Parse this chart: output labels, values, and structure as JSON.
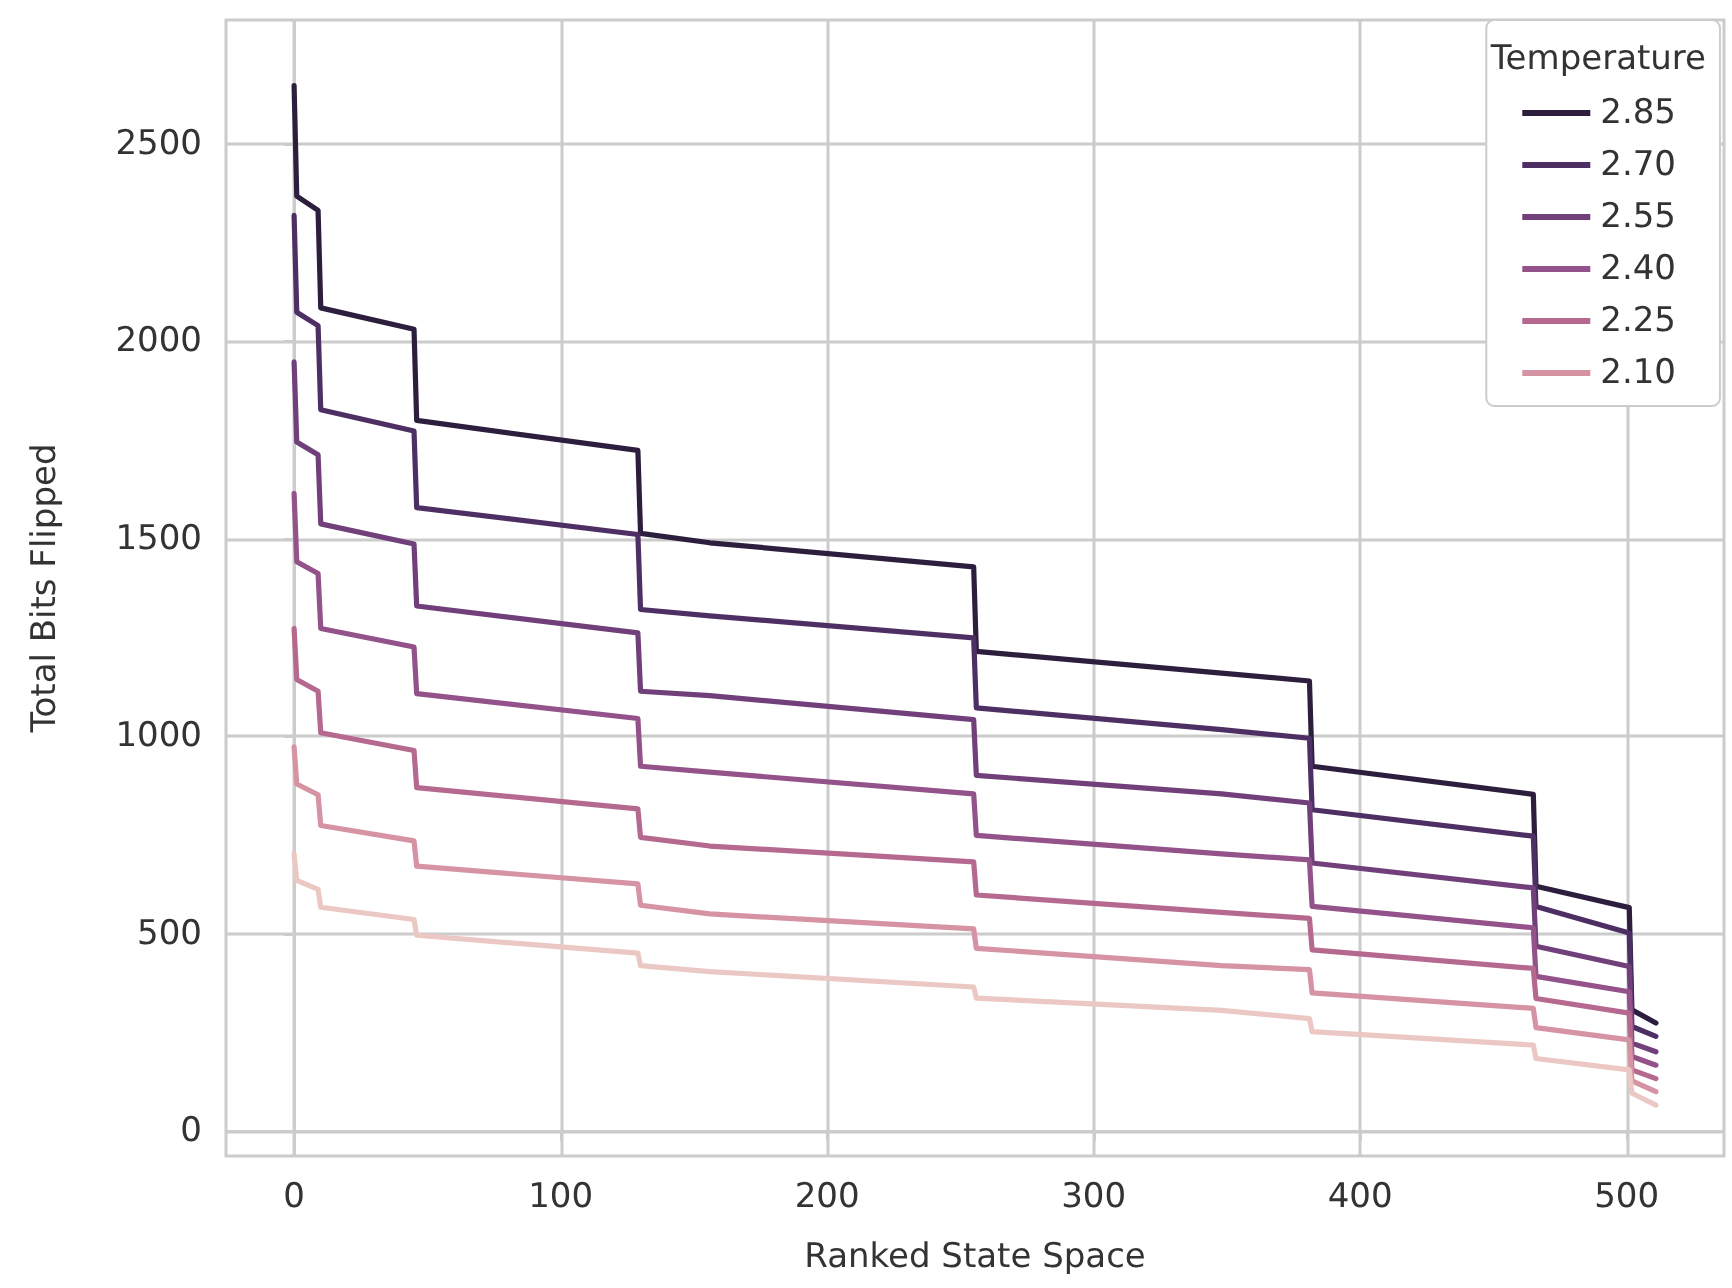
{
  "chart_data": {
    "type": "line",
    "xlabel": "Ranked State Space",
    "ylabel": "Total Bits Flipped",
    "legend_title": "Temperature",
    "x": [
      0,
      1,
      9,
      10,
      45,
      46,
      129,
      130,
      156,
      255,
      256,
      348,
      381,
      382,
      465,
      466,
      501,
      502,
      511
    ],
    "series": [
      {
        "name": "2.85",
        "color": "#2d1e3e",
        "values": [
          2648,
          2368,
          2332,
          2085,
          2031,
          1800,
          1724,
          1514,
          1490,
          1429,
          1215,
          1160,
          1140,
          924,
          853,
          620,
          566,
          307,
          274
        ]
      },
      {
        "name": "2.70",
        "color": "#4e2f63",
        "values": [
          2319,
          2074,
          2040,
          1827,
          1773,
          1579,
          1511,
          1321,
          1305,
          1249,
          1072,
          1017,
          995,
          814,
          747,
          569,
          502,
          265,
          240
        ]
      },
      {
        "name": "2.55",
        "color": "#71407a",
        "values": [
          1948,
          1745,
          1713,
          1538,
          1487,
          1330,
          1262,
          1114,
          1103,
          1042,
          901,
          854,
          831,
          679,
          616,
          468,
          417,
          223,
          201
        ]
      },
      {
        "name": "2.40",
        "color": "#935289",
        "values": [
          1615,
          1442,
          1412,
          1273,
          1226,
          1108,
          1045,
          924,
          909,
          854,
          749,
          702,
          687,
          569,
          515,
          392,
          353,
          189,
          167
        ]
      },
      {
        "name": "2.25",
        "color": "#b5698f",
        "values": [
          1273,
          1144,
          1114,
          1009,
          964,
          870,
          816,
          744,
          722,
          682,
          598,
          554,
          539,
          459,
          412,
          336,
          299,
          155,
          133
        ]
      },
      {
        "name": "2.10",
        "color": "#d593a4",
        "values": [
          973,
          879,
          852,
          774,
          735,
          671,
          626,
          572,
          550,
          512,
          463,
          419,
          409,
          350,
          311,
          262,
          231,
          127,
          100
        ]
      },
      {
        "color": "#ecc8c4",
        "values": [
          702,
          635,
          612,
          567,
          536,
          496,
          451,
          419,
          404,
          365,
          337,
          306,
          285,
          252,
          218,
          184,
          155,
          96,
          66
        ]
      }
    ],
    "xlim": [
      -25.55,
      536.55
    ],
    "xticks": [
      0,
      100,
      200,
      300,
      400,
      500
    ],
    "ylim": [
      -63,
      2814
    ],
    "yticks": [
      0,
      500,
      1000,
      1500,
      2000,
      2500
    ],
    "grid": true,
    "legend": "top right",
    "marker": "none",
    "line_style": "solid"
  }
}
